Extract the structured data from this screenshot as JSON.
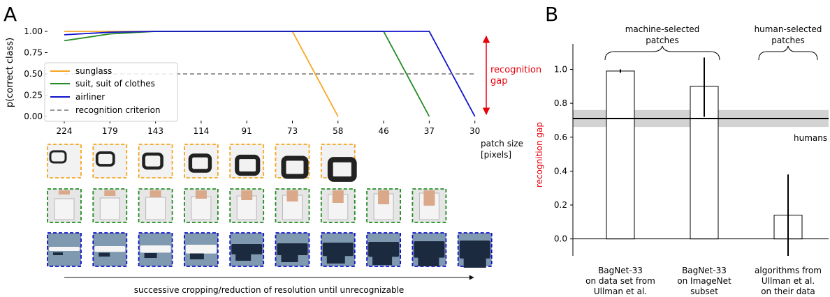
{
  "panel_a": {
    "letter": "A",
    "chart_data": {
      "type": "line",
      "ylabel": "p(correct class)",
      "xlabel": "patch size\n[pixels]",
      "categories": [
        "224",
        "179",
        "143",
        "114",
        "91",
        "73",
        "58",
        "46",
        "37",
        "30"
      ],
      "yticks": [
        "0.00",
        "0.25",
        "0.50",
        "0.75",
        "1.00"
      ],
      "ylim": [
        0,
        1
      ],
      "series": [
        {
          "name": "sunglass",
          "color": "#f5a623",
          "points": [
            [
              0,
              1.0
            ],
            [
              1,
              1.0
            ],
            [
              2,
              1.0
            ],
            [
              3,
              1.0
            ],
            [
              4,
              1.0
            ],
            [
              5,
              1.0
            ],
            [
              6,
              0.0
            ]
          ]
        },
        {
          "name": "suit, suit of clothes",
          "color": "#228b22",
          "points": [
            [
              0,
              0.89
            ],
            [
              1,
              0.97
            ],
            [
              2,
              1.0
            ],
            [
              3,
              1.0
            ],
            [
              4,
              1.0
            ],
            [
              5,
              1.0
            ],
            [
              6,
              1.0
            ],
            [
              7,
              1.0
            ],
            [
              8,
              0.0
            ]
          ]
        },
        {
          "name": "airliner",
          "color": "#1111cc",
          "points": [
            [
              0,
              0.96
            ],
            [
              1,
              0.99
            ],
            [
              2,
              1.0
            ],
            [
              3,
              1.0
            ],
            [
              4,
              1.0
            ],
            [
              5,
              1.0
            ],
            [
              6,
              1.0
            ],
            [
              7,
              1.0
            ],
            [
              8,
              1.0
            ],
            [
              9,
              0.0
            ]
          ]
        }
      ],
      "criterion": {
        "name": "recognition criterion",
        "value": 0.5,
        "color": "#777777"
      },
      "legend_position": "bottom-left",
      "gap_annotation": {
        "text_line1": "recognition",
        "text_line2": "gap",
        "color": "#e8000b"
      }
    },
    "thumbnail_rows": [
      {
        "object": "sunglass",
        "border_color": "#f5a623",
        "count": 7
      },
      {
        "object": "suit",
        "border_color": "#228b22",
        "count": 9
      },
      {
        "object": "airliner",
        "border_color": "#1111cc",
        "count": 10
      }
    ],
    "arrow_caption": "successive cropping/reduction of resolution until unrecognizable"
  },
  "panel_b": {
    "letter": "B",
    "chart_data": {
      "type": "bar",
      "ylabel": "recognition gap",
      "ylabel_color": "#e8000b",
      "yticks": [
        "0.0",
        "0.2",
        "0.4",
        "0.6",
        "0.8",
        "1.0"
      ],
      "ylim": [
        -0.1,
        1.15
      ],
      "categories": [
        [
          "BagNet-33",
          "on data set from",
          "Ullman et al."
        ],
        [
          "BagNet-33",
          "on ImageNet",
          "subset"
        ],
        [
          "algorithms from",
          "Ullman et al.",
          "on their data"
        ]
      ],
      "values": [
        0.99,
        0.9,
        0.14
      ],
      "error_low": [
        0.98,
        0.72,
        -0.1
      ],
      "error_high": [
        1.0,
        1.07,
        0.38
      ],
      "humans": {
        "label": "humans",
        "value": 0.71,
        "band_low": 0.66,
        "band_high": 0.76
      },
      "group_labels": [
        {
          "line1": "machine-selected",
          "line2": "patches"
        },
        {
          "line1": "human-selected",
          "line2": "patches"
        }
      ]
    }
  }
}
